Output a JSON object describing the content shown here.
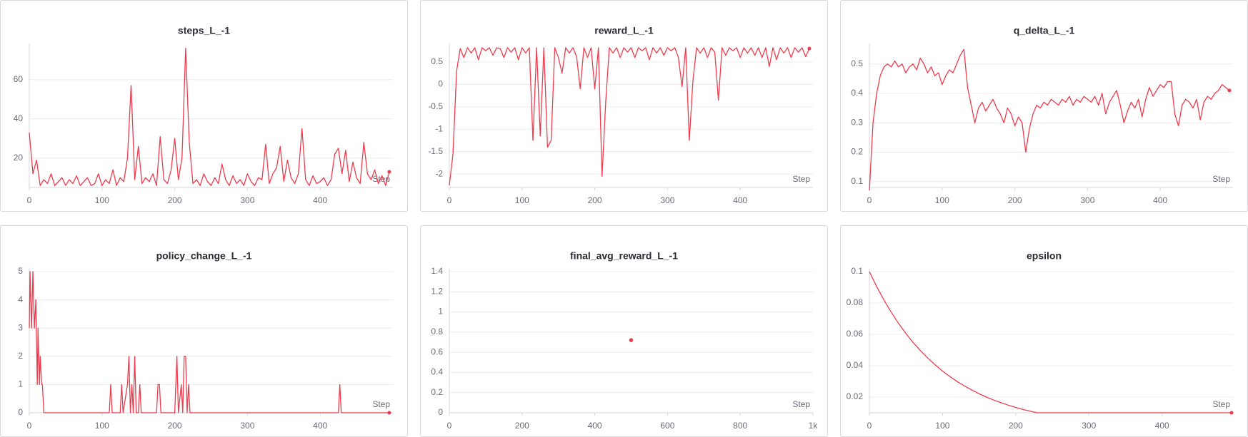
{
  "chart_data": [
    {
      "type": "line",
      "title": "steps_L_-1",
      "xlabel": "Step",
      "color": "#ee3b4d",
      "grid": true,
      "xlim": [
        0,
        500
      ],
      "ylim": [
        5,
        77
      ],
      "xticks": [
        0,
        100,
        200,
        300,
        400
      ],
      "yticks": [
        20,
        40,
        60
      ],
      "x": [
        0,
        5,
        10,
        15,
        20,
        25,
        30,
        35,
        40,
        45,
        50,
        55,
        60,
        65,
        70,
        75,
        80,
        85,
        90,
        95,
        100,
        105,
        110,
        115,
        120,
        125,
        130,
        135,
        140,
        145,
        150,
        155,
        160,
        165,
        170,
        175,
        180,
        185,
        190,
        195,
        200,
        205,
        210,
        215,
        220,
        225,
        230,
        235,
        240,
        245,
        250,
        255,
        260,
        265,
        270,
        275,
        280,
        285,
        290,
        295,
        300,
        305,
        310,
        315,
        320,
        325,
        330,
        335,
        340,
        345,
        350,
        355,
        360,
        365,
        370,
        375,
        380,
        385,
        390,
        395,
        400,
        405,
        410,
        415,
        420,
        425,
        430,
        435,
        440,
        445,
        450,
        455,
        460,
        465,
        470,
        475,
        480,
        485,
        490,
        495
      ],
      "values": [
        33,
        12,
        19,
        6,
        9,
        7,
        12,
        6,
        8,
        10,
        6,
        9,
        7,
        11,
        6,
        8,
        10,
        6,
        7,
        12,
        6,
        9,
        7,
        14,
        6,
        10,
        8,
        20,
        57,
        9,
        26,
        7,
        10,
        8,
        12,
        6,
        31,
        9,
        7,
        14,
        30,
        9,
        20,
        76,
        28,
        7,
        9,
        6,
        12,
        8,
        6,
        10,
        7,
        17,
        9,
        6,
        11,
        7,
        9,
        6,
        12,
        8,
        6,
        10,
        9,
        27,
        7,
        12,
        15,
        26,
        8,
        19,
        10,
        7,
        12,
        35,
        9,
        6,
        11,
        7,
        8,
        10,
        6,
        9,
        22,
        25,
        12,
        24,
        8,
        18,
        10,
        7,
        28,
        12,
        9,
        14,
        7,
        11,
        6,
        13
      ]
    },
    {
      "type": "line",
      "title": "reward_L_-1",
      "xlabel": "Step",
      "color": "#ee3b4d",
      "grid": true,
      "xlim": [
        0,
        500
      ],
      "ylim": [
        -2.3,
        0.85
      ],
      "xticks": [
        0,
        100,
        200,
        300,
        400
      ],
      "yticks": [
        0.5,
        0,
        -0.5,
        -1,
        -1.5,
        -2
      ],
      "x": [
        0,
        5,
        10,
        15,
        20,
        25,
        30,
        35,
        40,
        45,
        50,
        55,
        60,
        65,
        70,
        75,
        80,
        85,
        90,
        95,
        100,
        105,
        110,
        115,
        120,
        125,
        130,
        135,
        140,
        145,
        150,
        155,
        160,
        165,
        170,
        175,
        180,
        185,
        190,
        195,
        200,
        205,
        210,
        215,
        220,
        225,
        230,
        235,
        240,
        245,
        250,
        255,
        260,
        265,
        270,
        275,
        280,
        285,
        290,
        295,
        300,
        305,
        310,
        315,
        320,
        325,
        330,
        335,
        340,
        345,
        350,
        355,
        360,
        365,
        370,
        375,
        380,
        385,
        390,
        395,
        400,
        405,
        410,
        415,
        420,
        425,
        430,
        435,
        440,
        445,
        450,
        455,
        460,
        465,
        470,
        475,
        480,
        485,
        490,
        495
      ],
      "values": [
        -2.25,
        -1.55,
        0.3,
        0.8,
        0.6,
        0.82,
        0.7,
        0.82,
        0.55,
        0.82,
        0.75,
        0.82,
        0.65,
        0.82,
        0.8,
        0.6,
        0.82,
        0.72,
        0.82,
        0.55,
        0.82,
        0.7,
        0.82,
        -1.25,
        0.82,
        -1.15,
        0.82,
        -1.4,
        -1.25,
        0.82,
        0.6,
        0.25,
        0.82,
        0.7,
        0.82,
        0.62,
        -0.1,
        0.82,
        0.6,
        0.82,
        -0.1,
        0.82,
        -2.05,
        -0.4,
        0.82,
        0.7,
        0.82,
        0.6,
        0.82,
        0.72,
        0.82,
        0.6,
        0.82,
        0.75,
        0.82,
        0.55,
        0.82,
        0.7,
        0.82,
        0.65,
        0.82,
        0.75,
        0.82,
        0.6,
        -0.05,
        0.82,
        -1.25,
        0.1,
        0.82,
        0.7,
        0.82,
        0.6,
        0.82,
        0.72,
        -0.35,
        0.82,
        0.65,
        0.82,
        0.75,
        0.82,
        0.6,
        0.82,
        0.7,
        0.82,
        0.65,
        0.82,
        0.6,
        0.82,
        0.4,
        0.82,
        0.55,
        0.82,
        0.7,
        0.82,
        0.6,
        0.82,
        0.72,
        0.82,
        0.62,
        0.8
      ]
    },
    {
      "type": "line",
      "title": "q_delta_L_-1",
      "xlabel": "Step",
      "color": "#ee3b4d",
      "grid": true,
      "xlim": [
        0,
        500
      ],
      "ylim": [
        0.08,
        0.56
      ],
      "xticks": [
        0,
        100,
        200,
        300,
        400
      ],
      "yticks": [
        0.1,
        0.2,
        0.3,
        0.4,
        0.5
      ],
      "x": [
        0,
        5,
        10,
        15,
        20,
        25,
        30,
        35,
        40,
        45,
        50,
        55,
        60,
        65,
        70,
        75,
        80,
        85,
        90,
        95,
        100,
        105,
        110,
        115,
        120,
        125,
        130,
        135,
        140,
        145,
        150,
        155,
        160,
        165,
        170,
        175,
        180,
        185,
        190,
        195,
        200,
        205,
        210,
        215,
        220,
        225,
        230,
        235,
        240,
        245,
        250,
        255,
        260,
        265,
        270,
        275,
        280,
        285,
        290,
        295,
        300,
        305,
        310,
        315,
        320,
        325,
        330,
        335,
        340,
        345,
        350,
        355,
        360,
        365,
        370,
        375,
        380,
        385,
        390,
        395,
        400,
        405,
        410,
        415,
        420,
        425,
        430,
        435,
        440,
        445,
        450,
        455,
        460,
        465,
        470,
        475,
        480,
        485,
        490,
        495
      ],
      "values": [
        0.07,
        0.3,
        0.4,
        0.46,
        0.49,
        0.5,
        0.49,
        0.51,
        0.49,
        0.5,
        0.47,
        0.49,
        0.5,
        0.48,
        0.52,
        0.5,
        0.47,
        0.49,
        0.46,
        0.47,
        0.43,
        0.46,
        0.48,
        0.47,
        0.5,
        0.53,
        0.55,
        0.42,
        0.36,
        0.3,
        0.35,
        0.37,
        0.34,
        0.36,
        0.38,
        0.35,
        0.33,
        0.3,
        0.35,
        0.33,
        0.29,
        0.32,
        0.3,
        0.2,
        0.28,
        0.33,
        0.36,
        0.35,
        0.37,
        0.36,
        0.38,
        0.37,
        0.36,
        0.38,
        0.37,
        0.39,
        0.36,
        0.38,
        0.37,
        0.39,
        0.38,
        0.37,
        0.39,
        0.36,
        0.4,
        0.33,
        0.37,
        0.39,
        0.41,
        0.36,
        0.3,
        0.34,
        0.37,
        0.35,
        0.38,
        0.32,
        0.38,
        0.42,
        0.39,
        0.41,
        0.43,
        0.42,
        0.44,
        0.44,
        0.33,
        0.29,
        0.36,
        0.38,
        0.37,
        0.35,
        0.38,
        0.31,
        0.37,
        0.39,
        0.38,
        0.4,
        0.41,
        0.43,
        0.42,
        0.41
      ]
    },
    {
      "type": "line",
      "title": "policy_change_L_-1",
      "xlabel": "Step",
      "color": "#ee3b4d",
      "grid": true,
      "xlim": [
        0,
        500
      ],
      "ylim": [
        0,
        5
      ],
      "xticks": [
        0,
        100,
        200,
        300,
        400
      ],
      "yticks": [
        0,
        1,
        2,
        3,
        4,
        5
      ],
      "x": [
        0,
        1,
        3,
        5,
        7,
        9,
        11,
        12,
        14,
        15,
        17,
        18,
        20,
        110,
        112,
        114,
        125,
        127,
        129,
        135,
        137,
        139,
        141,
        143,
        145,
        147,
        150,
        152,
        154,
        175,
        177,
        179,
        181,
        200,
        203,
        205,
        209,
        211,
        213,
        215,
        217,
        219,
        221,
        425,
        427,
        429,
        495
      ],
      "values": [
        3,
        5,
        3,
        5,
        3,
        4,
        1,
        3,
        1,
        2,
        1,
        1,
        0,
        0,
        1,
        0,
        0,
        1,
        0,
        1,
        2,
        0,
        1,
        0,
        2,
        0,
        0,
        1,
        0,
        0,
        1,
        1,
        0,
        0,
        2,
        0,
        1,
        0,
        2,
        2,
        0,
        1,
        0,
        0,
        1,
        0,
        0
      ]
    },
    {
      "type": "scatter",
      "title": "final_avg_reward_L_-1",
      "xlabel": "Step",
      "color": "#ee3b4d",
      "grid": true,
      "xlim": [
        0,
        1000
      ],
      "ylim": [
        0,
        1.4
      ],
      "xticks": [
        0,
        200,
        400,
        600,
        800,
        {
          "value": 1000,
          "label": "1k"
        }
      ],
      "yticks": [
        0,
        0.2,
        0.4,
        0.6,
        0.8,
        1,
        1.2,
        1.4
      ],
      "x": [
        500
      ],
      "values": [
        0.72
      ]
    },
    {
      "type": "line",
      "title": "epsilon",
      "xlabel": "Step",
      "color": "#ee3b4d",
      "grid": true,
      "xlim": [
        0,
        497
      ],
      "ylim": [
        0.01,
        0.1
      ],
      "xticks": [
        0,
        100,
        200,
        300,
        400
      ],
      "yticks": [
        0.02,
        0.04,
        0.06,
        0.08,
        0.1
      ],
      "x": [
        0,
        10,
        20,
        30,
        40,
        50,
        60,
        70,
        80,
        90,
        100,
        110,
        120,
        130,
        140,
        150,
        160,
        170,
        180,
        190,
        200,
        210,
        220,
        229,
        260,
        300,
        340,
        380,
        420,
        460,
        495
      ],
      "values": [
        0.1,
        0.0904,
        0.0818,
        0.074,
        0.0669,
        0.0605,
        0.0547,
        0.0495,
        0.0448,
        0.0405,
        0.0366,
        0.0331,
        0.0299,
        0.0271,
        0.0245,
        0.0221,
        0.02,
        0.0181,
        0.0164,
        0.0148,
        0.0134,
        0.0121,
        0.011,
        0.01,
        0.01,
        0.01,
        0.01,
        0.01,
        0.01,
        0.01,
        0.01
      ]
    }
  ]
}
